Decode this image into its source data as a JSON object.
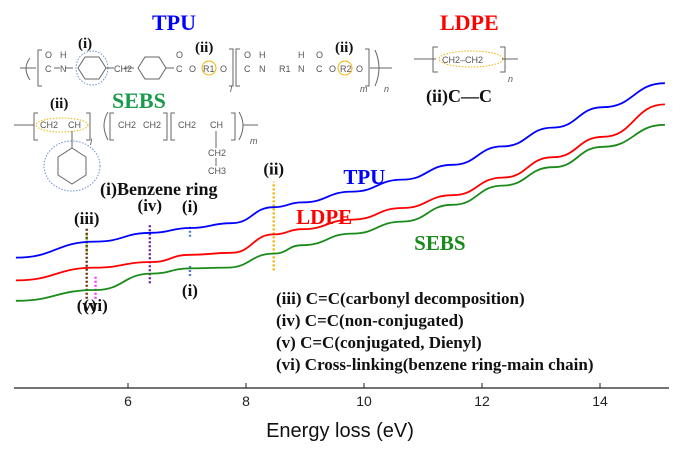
{
  "chart_data": {
    "type": "line",
    "title": "",
    "xlabel": "Energy loss (eV)",
    "ylabel": "",
    "xlim": [
      4,
      15
    ],
    "x_ticks": [
      6,
      8,
      10,
      12,
      14
    ],
    "grid": false,
    "series": [
      {
        "name": "TPU",
        "color": "#0000ff",
        "points": [
          [
            4.1,
            4.76
          ],
          [
            5.45,
            5.16
          ],
          [
            6.4,
            5.38
          ],
          [
            7.05,
            5.5
          ],
          [
            7.75,
            5.62
          ],
          [
            8.47,
            6.02
          ],
          [
            8.95,
            6.14
          ],
          [
            9.8,
            6.41
          ],
          [
            10.65,
            6.71
          ],
          [
            11.5,
            7.08
          ],
          [
            12.35,
            7.54
          ],
          [
            13.2,
            8.01
          ],
          [
            14.05,
            8.52
          ],
          [
            15.1,
            9.12
          ]
        ]
      },
      {
        "name": "LDPE",
        "color": "#ff0000",
        "points": [
          [
            4.1,
            4.19
          ],
          [
            5.45,
            4.51
          ],
          [
            6.4,
            4.65
          ],
          [
            7.05,
            4.83
          ],
          [
            7.75,
            4.88
          ],
          [
            8.47,
            5.34
          ],
          [
            8.95,
            5.47
          ],
          [
            9.8,
            5.71
          ],
          [
            10.65,
            6.0
          ],
          [
            11.5,
            6.32
          ],
          [
            12.35,
            6.76
          ],
          [
            13.2,
            7.27
          ],
          [
            14.05,
            7.78
          ],
          [
            15.1,
            8.59
          ]
        ]
      },
      {
        "name": "SEBS",
        "color": "#1a8a1a",
        "points": [
          [
            4.1,
            3.68
          ],
          [
            5.45,
            3.95
          ],
          [
            6.4,
            4.36
          ],
          [
            7.05,
            4.49
          ],
          [
            7.68,
            4.51
          ],
          [
            8.47,
            4.86
          ],
          [
            8.95,
            5.07
          ],
          [
            9.8,
            5.36
          ],
          [
            10.65,
            5.66
          ],
          [
            11.5,
            6.08
          ],
          [
            12.35,
            6.56
          ],
          [
            13.2,
            7.02
          ],
          [
            14.05,
            7.53
          ],
          [
            15.1,
            8.08
          ]
        ]
      }
    ],
    "series_labels": [
      {
        "text": "TPU",
        "color": "#0000ff",
        "x": 9.65,
        "y": 6.6
      },
      {
        "text": "LDPE",
        "color": "#ff0000",
        "x": 8.85,
        "y": 5.6
      },
      {
        "text": "SEBS",
        "color": "#1a8a1a",
        "x": 10.85,
        "y": 4.95
      }
    ],
    "annotations": [
      {
        "label": "(i)",
        "x": 7.05,
        "color": "#4a7fd0",
        "y_from": 5.28,
        "y_to": 5.54,
        "label_pos": "above",
        "label_y": 5.9
      },
      {
        "label": "(i)",
        "x": 7.05,
        "color": "#4a7fd0",
        "y_from": 4.3,
        "y_to": 4.55,
        "label_pos": "below",
        "label_y": 3.8
      },
      {
        "label": "(ii)",
        "x": 8.47,
        "color": "#f0b400",
        "y_from": 4.44,
        "y_to": 6.66,
        "label_pos": "above",
        "label_y": 6.84
      },
      {
        "label": "(iii)",
        "x": 5.3,
        "color": "#8fd040",
        "y_from": 4.9,
        "y_to": 5.4,
        "label_pos": "above",
        "label_y": 5.6
      },
      {
        "label": "(iv)",
        "x": 6.37,
        "color": "#6a1fa0",
        "y_from": 4.12,
        "y_to": 5.6,
        "label_pos": "above",
        "label_y": 5.92
      },
      {
        "label": "(v)",
        "x": 5.3,
        "color": "#6b3010",
        "y_from": 3.73,
        "y_to": 5.48,
        "label_pos": "below",
        "label_y": 3.42
      },
      {
        "label": "(vi)",
        "x": 5.45,
        "color": "#ff33ff",
        "y_from": 3.73,
        "y_to": 4.3,
        "label_pos": "below",
        "label_y": 3.42
      }
    ],
    "legend_notes": [
      "(iii) C=C(carbonyl decomposition)",
      "(iv) C=C(non-conjugated)",
      "(v)  C=C(conjugated, Dienyl)",
      "(vi) Cross-linking(benzene ring-main chain)"
    ]
  },
  "structures": {
    "tpu": {
      "title": "TPU",
      "label_i": "(i)",
      "label_ii_1": "(ii)",
      "label_ii_2": "(ii)",
      "atoms": {
        "o1": "O",
        "c1": "C",
        "h1": "H",
        "n1": "N",
        "ch2": "CH2",
        "o2": "O",
        "c2": "C",
        "o3": "O",
        "r1": "R1",
        "o4": "O",
        "o5": "O",
        "c3": "C",
        "h2": "H",
        "n2": "N",
        "r1b": "R1",
        "h3": "H",
        "n3": "N",
        "o6": "O",
        "c4": "C",
        "o7": "O",
        "r2": "R2",
        "o8": "O",
        "sub_l": "l",
        "sub_m": "m",
        "sub_n": "n"
      }
    },
    "sebs": {
      "title": "SEBS",
      "label_ii": "(ii)",
      "benzene_label": "(i)Benzene ring",
      "atoms": {
        "a1": "CH2",
        "a2": "CH",
        "a3": "CH2",
        "a4": "CH2",
        "a5": "CH2",
        "a6": "CH",
        "a7": "CH2",
        "a8": "CH3",
        "sub_l": "l",
        "sub_m": "m"
      }
    },
    "ldpe": {
      "title": "LDPE",
      "unit": "CH2–CH2",
      "sub_n": "n",
      "bond_label": "(ii)C—C"
    }
  }
}
